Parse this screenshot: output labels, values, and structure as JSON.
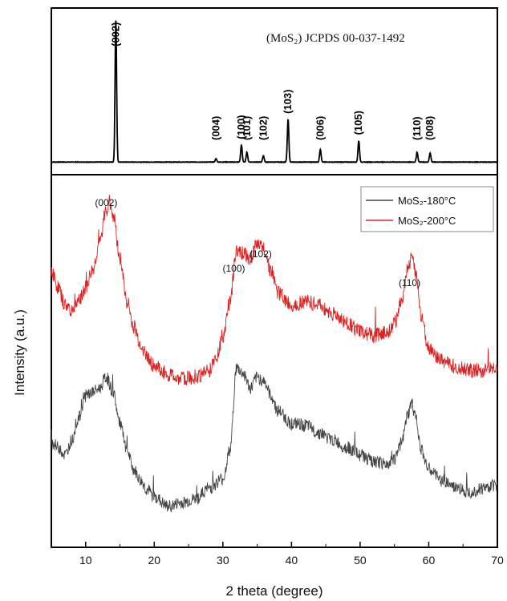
{
  "chart_data": [
    {
      "type": "line",
      "panel": "top",
      "title": "(MoS₂) JCPDS 00-037-1492",
      "peaks": [
        {
          "label": "(002)",
          "x": 14.4,
          "h": 1.0
        },
        {
          "label": "(004)",
          "x": 29.0,
          "h": 0.025
        },
        {
          "label": "(100)",
          "x": 32.7,
          "h": 0.12
        },
        {
          "label": "(101)",
          "x": 33.5,
          "h": 0.07
        },
        {
          "label": "(102)",
          "x": 35.9,
          "h": 0.045
        },
        {
          "label": "(103)",
          "x": 39.5,
          "h": 0.3
        },
        {
          "label": "(006)",
          "x": 44.2,
          "h": 0.09
        },
        {
          "label": "(105)",
          "x": 49.8,
          "h": 0.15
        },
        {
          "label": "(110)",
          "x": 58.3,
          "h": 0.07
        },
        {
          "label": "(008)",
          "x": 60.2,
          "h": 0.065
        }
      ],
      "xlim": [
        5,
        70
      ]
    },
    {
      "type": "line",
      "panel": "bottom",
      "xlabel": "2 theta (degree)",
      "ylabel": "Intensity (a.u.)",
      "xlim": [
        5,
        70
      ],
      "x_ticks": [
        "10",
        "20",
        "30",
        "40",
        "50",
        "60",
        "70"
      ],
      "legend_position": "top-right",
      "series": [
        {
          "name": "MoS₂-180°C",
          "color": "#444444",
          "x": [
            5,
            6,
            7,
            8,
            9,
            10,
            11,
            12,
            13,
            14,
            15,
            16,
            17,
            18,
            19,
            20,
            22,
            24,
            26,
            28,
            30,
            31,
            32,
            33,
            34,
            35,
            36,
            37,
            38,
            40,
            42,
            44,
            46,
            48,
            50,
            52,
            54,
            55,
            56,
            57,
            57.5,
            58,
            59,
            60,
            62,
            64,
            66,
            68,
            70
          ],
          "y": [
            0.45,
            0.42,
            0.38,
            0.46,
            0.58,
            0.7,
            0.72,
            0.74,
            0.8,
            0.72,
            0.55,
            0.4,
            0.3,
            0.24,
            0.19,
            0.15,
            0.1,
            0.12,
            0.14,
            0.2,
            0.25,
            0.4,
            0.85,
            0.82,
            0.74,
            0.8,
            0.78,
            0.7,
            0.62,
            0.55,
            0.54,
            0.5,
            0.46,
            0.42,
            0.38,
            0.34,
            0.33,
            0.36,
            0.44,
            0.6,
            0.66,
            0.6,
            0.4,
            0.3,
            0.24,
            0.2,
            0.18,
            0.2,
            0.22
          ]
        },
        {
          "name": "MoS₂-200°C",
          "color": "#dd2222",
          "x": [
            5,
            6,
            7,
            8,
            9,
            10,
            11,
            12,
            13,
            13.5,
            14,
            15,
            16,
            17,
            18,
            19,
            20,
            22,
            24,
            26,
            28,
            29,
            30,
            31,
            32,
            33,
            34,
            35,
            36,
            37,
            38,
            40,
            42,
            44,
            46,
            48,
            50,
            52,
            54,
            55,
            56,
            57,
            57.5,
            58,
            59,
            60,
            62,
            64,
            66,
            68,
            70
          ],
          "y": [
            0.6,
            0.52,
            0.44,
            0.42,
            0.46,
            0.52,
            0.6,
            0.72,
            0.88,
            0.92,
            0.86,
            0.66,
            0.46,
            0.34,
            0.26,
            0.2,
            0.16,
            0.12,
            0.1,
            0.11,
            0.14,
            0.2,
            0.3,
            0.45,
            0.7,
            0.68,
            0.66,
            0.72,
            0.7,
            0.6,
            0.5,
            0.44,
            0.46,
            0.44,
            0.4,
            0.36,
            0.32,
            0.3,
            0.32,
            0.36,
            0.46,
            0.62,
            0.66,
            0.6,
            0.38,
            0.24,
            0.18,
            0.16,
            0.14,
            0.14,
            0.15
          ]
        }
      ],
      "peak_labels": [
        {
          "label": "(002)",
          "x": 13.0
        },
        {
          "label": "(100)",
          "x": 31.6
        },
        {
          "label": "(102)",
          "x": 35.5
        },
        {
          "label": "(110)",
          "x": 57.2
        }
      ]
    }
  ]
}
